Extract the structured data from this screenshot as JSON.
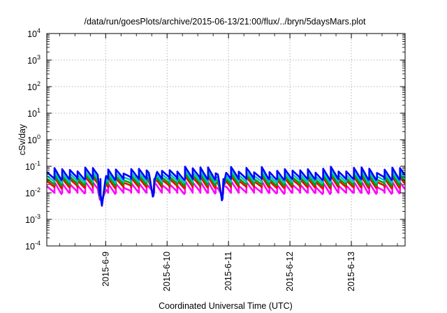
{
  "chart_data": {
    "type": "line",
    "title": "/data/run/goesPlots/archive/2015-06-13/21:00/flux/../bryn/5daysMars.plot",
    "xlabel": "Coordinated Universal Time (UTC)",
    "ylabel": "cSv/day",
    "yscale": "log",
    "ylim_exp": [
      -4,
      4
    ],
    "y_ticks": [
      {
        "base": "10",
        "exp": "-4",
        "value": 0.0001
      },
      {
        "base": "10",
        "exp": "-3",
        "value": 0.001
      },
      {
        "base": "10",
        "exp": "-2",
        "value": 0.01
      },
      {
        "base": "10",
        "exp": "-1",
        "value": 0.1
      },
      {
        "base": "10",
        "exp": "0",
        "value": 1
      },
      {
        "base": "10",
        "exp": "1",
        "value": 10
      },
      {
        "base": "10",
        "exp": "2",
        "value": 100
      },
      {
        "base": "10",
        "exp": "3",
        "value": 1000
      },
      {
        "base": "10",
        "exp": "4",
        "value": 10000
      }
    ],
    "xlim": [
      "2015-06-08 01:00",
      "2015-06-13 21:00"
    ],
    "x_ticks": [
      {
        "label": "2015-6-9",
        "date": "2015-06-09 00:00"
      },
      {
        "label": "2015-6-10",
        "date": "2015-06-10 00:00"
      },
      {
        "label": "2015-6-11",
        "date": "2015-06-11 00:00"
      },
      {
        "label": "2015-6-12",
        "date": "2015-06-12 00:00"
      },
      {
        "label": "2015-6-13",
        "date": "2015-06-13 00:00"
      }
    ],
    "grid": true,
    "legend": "none",
    "cycle_hours": 3.0,
    "series": [
      {
        "color": "#0000ff",
        "peak": 0.075,
        "trough": 0.035
      },
      {
        "color": "#00bfbf",
        "peak": 0.055,
        "trough": 0.027
      },
      {
        "color": "#00a000",
        "peak": 0.042,
        "trough": 0.021
      },
      {
        "color": "#ff0000",
        "peak": 0.034,
        "trough": 0.017
      },
      {
        "color": "#ff00ff",
        "peak": 0.022,
        "trough": 0.0105
      }
    ],
    "dips": [
      {
        "date": "2015-06-08 22:30",
        "min": 0.0016
      },
      {
        "date": "2015-06-09 18:30",
        "min": 0.006
      },
      {
        "date": "2015-06-10 21:30",
        "min": 0.004
      }
    ]
  }
}
